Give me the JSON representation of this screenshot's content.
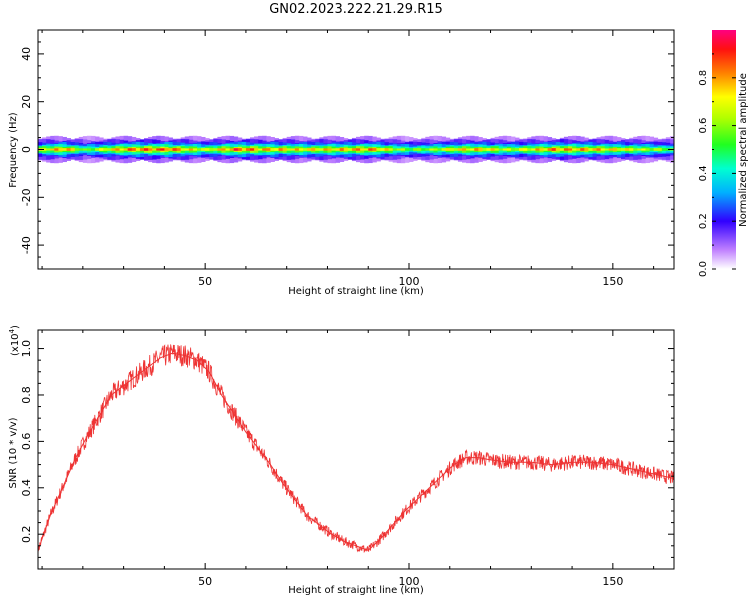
{
  "title": "GN02.2023.222.21.29.R15",
  "chart_data": [
    {
      "type": "heatmap",
      "xlabel": "Height of straight line (km)",
      "ylabel": "Frequency (Hz)",
      "xlim": [
        9,
        165
      ],
      "ylim": [
        -50,
        50
      ],
      "xticks": [
        50,
        100,
        150
      ],
      "yticks": [
        -40,
        -20,
        0,
        20,
        40
      ],
      "colorbar": {
        "label": "Normalized spectral amplitude",
        "range": [
          0,
          1
        ],
        "ticks": [
          "0.0",
          "0.2",
          "0.4",
          "0.6",
          "0.8"
        ],
        "tick_values": [
          0,
          0.2,
          0.4,
          0.6,
          0.8
        ]
      },
      "band": {
        "center_frequency": 0,
        "half_width_hz": 2.5,
        "description_points": [
          {
            "x": 9,
            "amp": 0.75
          },
          {
            "x": 15,
            "amp": 0.9
          },
          {
            "x": 20,
            "amp": 0.6
          },
          {
            "x": 30,
            "amp": 0.9
          },
          {
            "x": 40,
            "amp": 0.95
          },
          {
            "x": 50,
            "amp": 0.7
          },
          {
            "x": 57,
            "amp": 0.95
          },
          {
            "x": 65,
            "amp": 0.85
          },
          {
            "x": 75,
            "amp": 0.8
          },
          {
            "x": 85,
            "amp": 0.85
          },
          {
            "x": 90,
            "amp": 0.9
          },
          {
            "x": 100,
            "amp": 0.6
          },
          {
            "x": 115,
            "amp": 0.85
          },
          {
            "x": 125,
            "amp": 0.7
          },
          {
            "x": 135,
            "amp": 0.9
          },
          {
            "x": 145,
            "amp": 0.85
          },
          {
            "x": 155,
            "amp": 0.75
          },
          {
            "x": 165,
            "amp": 0.6
          }
        ]
      }
    },
    {
      "type": "line",
      "xlabel": "Height of straight line (km)",
      "ylabel": "SNR (10 * v/v)",
      "y_multiplier_label": "(x10",
      "y_multiplier_exp": "4",
      "y_multiplier_close": ")",
      "xlim": [
        9,
        165
      ],
      "ylim": [
        0.05,
        1.08
      ],
      "xticks": [
        50,
        100,
        150
      ],
      "yticks": [
        0.2,
        0.4,
        0.6,
        0.8,
        1.0
      ],
      "color": "#ee3333",
      "series": [
        {
          "x": [
            9,
            12,
            15,
            18,
            21,
            24,
            27,
            30,
            33,
            36,
            39,
            42,
            45,
            48,
            51,
            54,
            57,
            60,
            63,
            66,
            69,
            72,
            75,
            78,
            81,
            84,
            87,
            90,
            93,
            96,
            99,
            102,
            105,
            108,
            111,
            114,
            117,
            120,
            125,
            130,
            135,
            140,
            145,
            150,
            155,
            160,
            165
          ],
          "values": [
            0.13,
            0.28,
            0.4,
            0.52,
            0.62,
            0.71,
            0.8,
            0.84,
            0.88,
            0.92,
            0.96,
            0.98,
            0.97,
            0.95,
            0.9,
            0.8,
            0.72,
            0.64,
            0.57,
            0.5,
            0.42,
            0.35,
            0.28,
            0.24,
            0.2,
            0.17,
            0.15,
            0.13,
            0.18,
            0.24,
            0.3,
            0.35,
            0.4,
            0.45,
            0.5,
            0.53,
            0.53,
            0.52,
            0.51,
            0.51,
            0.5,
            0.51,
            0.51,
            0.5,
            0.48,
            0.46,
            0.44
          ]
        }
      ]
    }
  ]
}
